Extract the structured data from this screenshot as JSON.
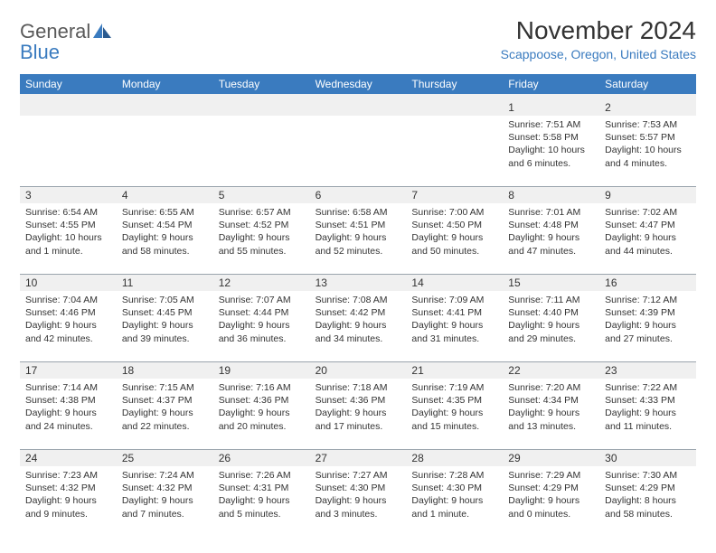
{
  "logo": {
    "general": "General",
    "blue": "Blue"
  },
  "title": "November 2024",
  "location": "Scappoose, Oregon, United States",
  "colors": {
    "header_bar": "#3a7bbf",
    "daynum_bg": "#f0f0f0",
    "text": "#333333",
    "link": "#3a7bbf",
    "border": "#9aa4ad"
  },
  "weekdays": [
    "Sunday",
    "Monday",
    "Tuesday",
    "Wednesday",
    "Thursday",
    "Friday",
    "Saturday"
  ],
  "weeks": [
    {
      "numbers": [
        "",
        "",
        "",
        "",
        "",
        "1",
        "2"
      ],
      "cells": [
        null,
        null,
        null,
        null,
        null,
        {
          "sunrise": "Sunrise: 7:51 AM",
          "sunset": "Sunset: 5:58 PM",
          "daylight1": "Daylight: 10 hours",
          "daylight2": "and 6 minutes."
        },
        {
          "sunrise": "Sunrise: 7:53 AM",
          "sunset": "Sunset: 5:57 PM",
          "daylight1": "Daylight: 10 hours",
          "daylight2": "and 4 minutes."
        }
      ]
    },
    {
      "numbers": [
        "3",
        "4",
        "5",
        "6",
        "7",
        "8",
        "9"
      ],
      "cells": [
        {
          "sunrise": "Sunrise: 6:54 AM",
          "sunset": "Sunset: 4:55 PM",
          "daylight1": "Daylight: 10 hours",
          "daylight2": "and 1 minute."
        },
        {
          "sunrise": "Sunrise: 6:55 AM",
          "sunset": "Sunset: 4:54 PM",
          "daylight1": "Daylight: 9 hours",
          "daylight2": "and 58 minutes."
        },
        {
          "sunrise": "Sunrise: 6:57 AM",
          "sunset": "Sunset: 4:52 PM",
          "daylight1": "Daylight: 9 hours",
          "daylight2": "and 55 minutes."
        },
        {
          "sunrise": "Sunrise: 6:58 AM",
          "sunset": "Sunset: 4:51 PM",
          "daylight1": "Daylight: 9 hours",
          "daylight2": "and 52 minutes."
        },
        {
          "sunrise": "Sunrise: 7:00 AM",
          "sunset": "Sunset: 4:50 PM",
          "daylight1": "Daylight: 9 hours",
          "daylight2": "and 50 minutes."
        },
        {
          "sunrise": "Sunrise: 7:01 AM",
          "sunset": "Sunset: 4:48 PM",
          "daylight1": "Daylight: 9 hours",
          "daylight2": "and 47 minutes."
        },
        {
          "sunrise": "Sunrise: 7:02 AM",
          "sunset": "Sunset: 4:47 PM",
          "daylight1": "Daylight: 9 hours",
          "daylight2": "and 44 minutes."
        }
      ]
    },
    {
      "numbers": [
        "10",
        "11",
        "12",
        "13",
        "14",
        "15",
        "16"
      ],
      "cells": [
        {
          "sunrise": "Sunrise: 7:04 AM",
          "sunset": "Sunset: 4:46 PM",
          "daylight1": "Daylight: 9 hours",
          "daylight2": "and 42 minutes."
        },
        {
          "sunrise": "Sunrise: 7:05 AM",
          "sunset": "Sunset: 4:45 PM",
          "daylight1": "Daylight: 9 hours",
          "daylight2": "and 39 minutes."
        },
        {
          "sunrise": "Sunrise: 7:07 AM",
          "sunset": "Sunset: 4:44 PM",
          "daylight1": "Daylight: 9 hours",
          "daylight2": "and 36 minutes."
        },
        {
          "sunrise": "Sunrise: 7:08 AM",
          "sunset": "Sunset: 4:42 PM",
          "daylight1": "Daylight: 9 hours",
          "daylight2": "and 34 minutes."
        },
        {
          "sunrise": "Sunrise: 7:09 AM",
          "sunset": "Sunset: 4:41 PM",
          "daylight1": "Daylight: 9 hours",
          "daylight2": "and 31 minutes."
        },
        {
          "sunrise": "Sunrise: 7:11 AM",
          "sunset": "Sunset: 4:40 PM",
          "daylight1": "Daylight: 9 hours",
          "daylight2": "and 29 minutes."
        },
        {
          "sunrise": "Sunrise: 7:12 AM",
          "sunset": "Sunset: 4:39 PM",
          "daylight1": "Daylight: 9 hours",
          "daylight2": "and 27 minutes."
        }
      ]
    },
    {
      "numbers": [
        "17",
        "18",
        "19",
        "20",
        "21",
        "22",
        "23"
      ],
      "cells": [
        {
          "sunrise": "Sunrise: 7:14 AM",
          "sunset": "Sunset: 4:38 PM",
          "daylight1": "Daylight: 9 hours",
          "daylight2": "and 24 minutes."
        },
        {
          "sunrise": "Sunrise: 7:15 AM",
          "sunset": "Sunset: 4:37 PM",
          "daylight1": "Daylight: 9 hours",
          "daylight2": "and 22 minutes."
        },
        {
          "sunrise": "Sunrise: 7:16 AM",
          "sunset": "Sunset: 4:36 PM",
          "daylight1": "Daylight: 9 hours",
          "daylight2": "and 20 minutes."
        },
        {
          "sunrise": "Sunrise: 7:18 AM",
          "sunset": "Sunset: 4:36 PM",
          "daylight1": "Daylight: 9 hours",
          "daylight2": "and 17 minutes."
        },
        {
          "sunrise": "Sunrise: 7:19 AM",
          "sunset": "Sunset: 4:35 PM",
          "daylight1": "Daylight: 9 hours",
          "daylight2": "and 15 minutes."
        },
        {
          "sunrise": "Sunrise: 7:20 AM",
          "sunset": "Sunset: 4:34 PM",
          "daylight1": "Daylight: 9 hours",
          "daylight2": "and 13 minutes."
        },
        {
          "sunrise": "Sunrise: 7:22 AM",
          "sunset": "Sunset: 4:33 PM",
          "daylight1": "Daylight: 9 hours",
          "daylight2": "and 11 minutes."
        }
      ]
    },
    {
      "numbers": [
        "24",
        "25",
        "26",
        "27",
        "28",
        "29",
        "30"
      ],
      "cells": [
        {
          "sunrise": "Sunrise: 7:23 AM",
          "sunset": "Sunset: 4:32 PM",
          "daylight1": "Daylight: 9 hours",
          "daylight2": "and 9 minutes."
        },
        {
          "sunrise": "Sunrise: 7:24 AM",
          "sunset": "Sunset: 4:32 PM",
          "daylight1": "Daylight: 9 hours",
          "daylight2": "and 7 minutes."
        },
        {
          "sunrise": "Sunrise: 7:26 AM",
          "sunset": "Sunset: 4:31 PM",
          "daylight1": "Daylight: 9 hours",
          "daylight2": "and 5 minutes."
        },
        {
          "sunrise": "Sunrise: 7:27 AM",
          "sunset": "Sunset: 4:30 PM",
          "daylight1": "Daylight: 9 hours",
          "daylight2": "and 3 minutes."
        },
        {
          "sunrise": "Sunrise: 7:28 AM",
          "sunset": "Sunset: 4:30 PM",
          "daylight1": "Daylight: 9 hours",
          "daylight2": "and 1 minute."
        },
        {
          "sunrise": "Sunrise: 7:29 AM",
          "sunset": "Sunset: 4:29 PM",
          "daylight1": "Daylight: 9 hours",
          "daylight2": "and 0 minutes."
        },
        {
          "sunrise": "Sunrise: 7:30 AM",
          "sunset": "Sunset: 4:29 PM",
          "daylight1": "Daylight: 8 hours",
          "daylight2": "and 58 minutes."
        }
      ]
    }
  ]
}
